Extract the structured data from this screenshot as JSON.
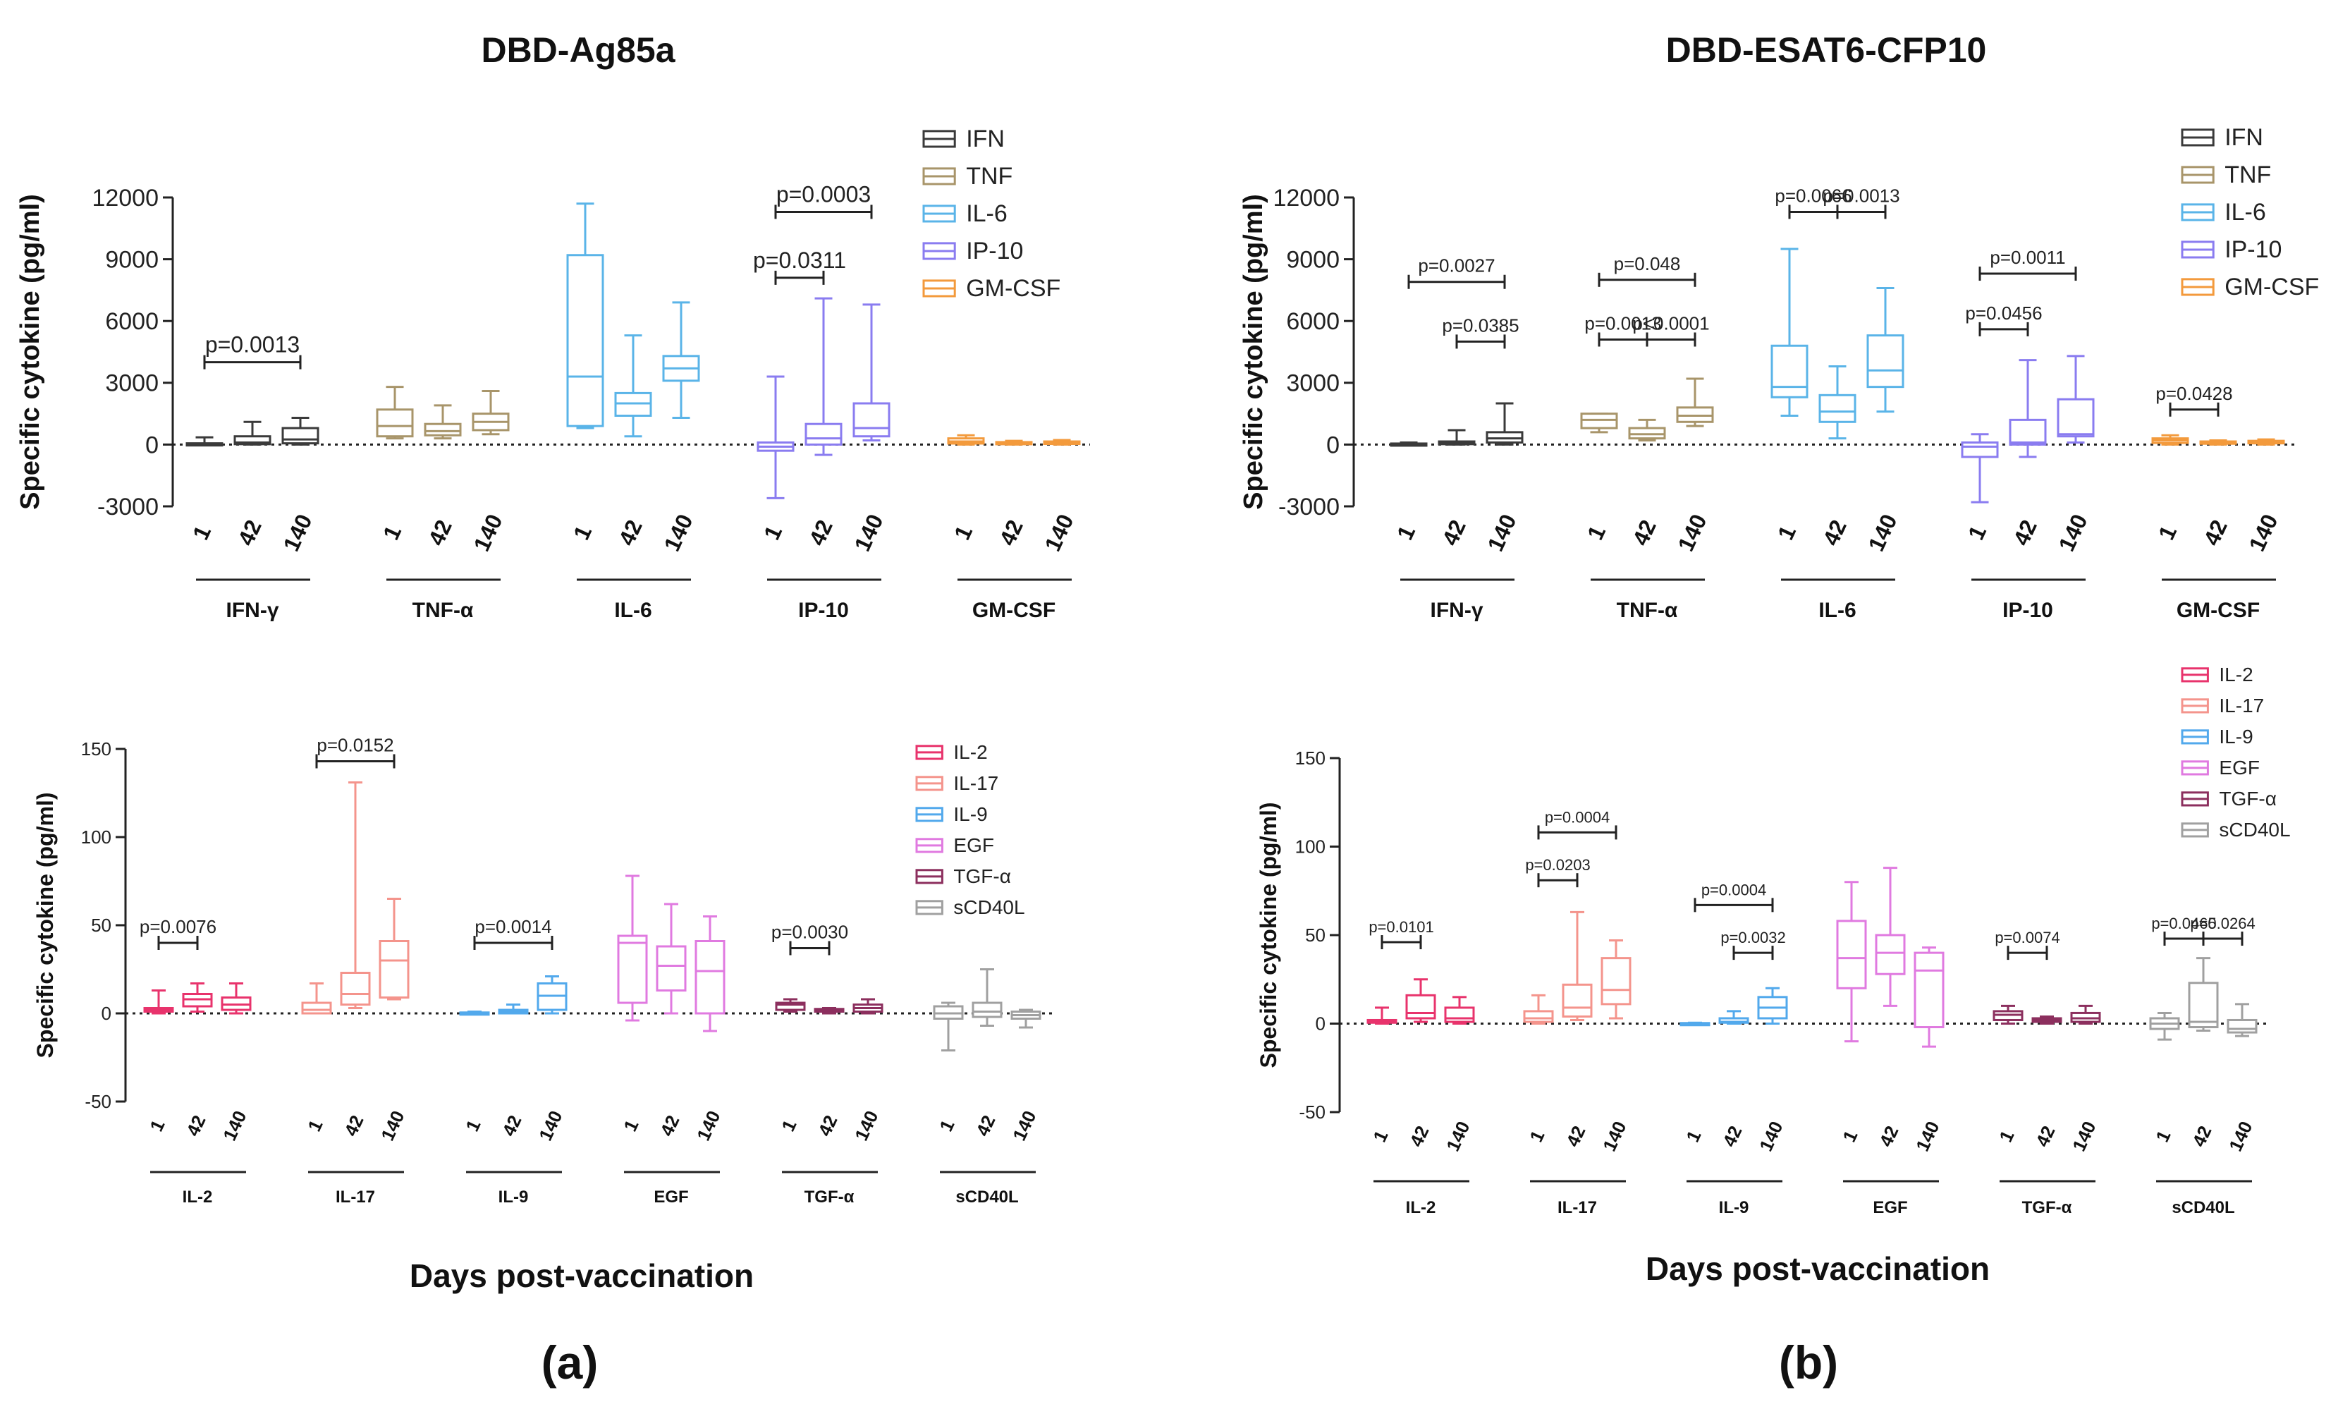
{
  "panel_a": {
    "title": "DBD-Ag85a",
    "label": "(a)"
  },
  "panel_b": {
    "title": "DBD-ESAT6-CFP10",
    "label": "(b)"
  },
  "xlabel": "Days post-vaccination",
  "colors": {
    "IFN": "#3a3a3a",
    "TNF": "#a8956a",
    "IL-6": "#5ab4e8",
    "IP-10": "#8a7cf0",
    "GM-CSF": "#f39a3c",
    "IL-2": "#e8336c",
    "IL-17": "#f4948c",
    "IL-9": "#52a9ec",
    "EGF": "#e07ae0",
    "TGF-a": "#8c2f5e",
    "sCD40L": "#a0a0a0"
  },
  "chart_data": [
    {
      "id": "a_top",
      "type": "boxplot",
      "title": "DBD-Ag85a",
      "ylabel": "Specific cytokine (pg/ml)",
      "ylim": [
        -3000,
        12000
      ],
      "yticks": [
        -3000,
        0,
        3000,
        6000,
        9000,
        12000
      ],
      "day_labels": [
        "1",
        "42",
        "140"
      ],
      "legend": [
        "IFN",
        "TNF",
        "IL-6",
        "IP-10",
        "GM-CSF"
      ],
      "groups": [
        {
          "name": "IFN-γ",
          "color_key": "IFN",
          "boxes": [
            {
              "min": 0,
              "q1": 0,
              "median": 30,
              "q3": 60,
              "max": 350
            },
            {
              "min": 0,
              "q1": 20,
              "median": 100,
              "q3": 400,
              "max": 1100
            },
            {
              "min": 0,
              "q1": 60,
              "median": 250,
              "q3": 800,
              "max": 1300
            }
          ]
        },
        {
          "name": "TNF-α",
          "color_key": "TNF",
          "boxes": [
            {
              "min": 300,
              "q1": 400,
              "median": 900,
              "q3": 1700,
              "max": 2800
            },
            {
              "min": 300,
              "q1": 450,
              "median": 650,
              "q3": 1000,
              "max": 1900
            },
            {
              "min": 500,
              "q1": 700,
              "median": 1100,
              "q3": 1500,
              "max": 2600
            }
          ]
        },
        {
          "name": "IL-6",
          "color_key": "IL-6",
          "boxes": [
            {
              "min": 800,
              "q1": 900,
              "median": 3300,
              "q3": 9200,
              "max": 11700
            },
            {
              "min": 400,
              "q1": 1400,
              "median": 2000,
              "q3": 2500,
              "max": 5300
            },
            {
              "min": 1300,
              "q1": 3100,
              "median": 3700,
              "q3": 4300,
              "max": 6900
            }
          ]
        },
        {
          "name": "IP-10",
          "color_key": "IP-10",
          "boxes": [
            {
              "min": -2600,
              "q1": -300,
              "median": -100,
              "q3": 100,
              "max": 3300
            },
            {
              "min": -500,
              "q1": 0,
              "median": 300,
              "q3": 1000,
              "max": 7100
            },
            {
              "min": 200,
              "q1": 400,
              "median": 800,
              "q3": 2000,
              "max": 6800
            }
          ]
        },
        {
          "name": "GM-CSF",
          "color_key": "GM-CSF",
          "boxes": [
            {
              "min": 0,
              "q1": 50,
              "median": 150,
              "q3": 300,
              "max": 450
            },
            {
              "min": 0,
              "q1": 20,
              "median": 60,
              "q3": 120,
              "max": 180
            },
            {
              "min": 0,
              "q1": 30,
              "median": 80,
              "q3": 150,
              "max": 220
            }
          ]
        }
      ],
      "annotations": [
        {
          "text": "p=0.0013",
          "group": 0,
          "from": 0,
          "to": 2,
          "level": 4000
        },
        {
          "text": "p=0.0311",
          "group": 3,
          "from": 0,
          "to": 1,
          "level": 8100
        },
        {
          "text": "p=0.0003",
          "group": 3,
          "from": 0,
          "to": 2,
          "level": 11300
        }
      ]
    },
    {
      "id": "b_top",
      "type": "boxplot",
      "title": "DBD-ESAT6-CFP10",
      "ylabel": "Specific cytokine (pg/ml)",
      "ylim": [
        -3000,
        12000
      ],
      "yticks": [
        -3000,
        0,
        3000,
        6000,
        9000,
        12000
      ],
      "day_labels": [
        "1",
        "42",
        "140"
      ],
      "legend": [
        "IFN",
        "TNF",
        "IL-6",
        "IP-10",
        "GM-CSF"
      ],
      "groups": [
        {
          "name": "IFN-γ",
          "color_key": "IFN",
          "boxes": [
            {
              "min": 0,
              "q1": 0,
              "median": 20,
              "q3": 50,
              "max": 100
            },
            {
              "min": 0,
              "q1": 20,
              "median": 80,
              "q3": 150,
              "max": 700
            },
            {
              "min": 0,
              "q1": 100,
              "median": 300,
              "q3": 600,
              "max": 2000
            }
          ]
        },
        {
          "name": "TNF-α",
          "color_key": "TNF",
          "boxes": [
            {
              "min": 600,
              "q1": 800,
              "median": 1200,
              "q3": 1500,
              "max": 1500
            },
            {
              "min": 200,
              "q1": 300,
              "median": 500,
              "q3": 800,
              "max": 1200
            },
            {
              "min": 900,
              "q1": 1100,
              "median": 1400,
              "q3": 1800,
              "max": 3200
            }
          ]
        },
        {
          "name": "IL-6",
          "color_key": "IL-6",
          "boxes": [
            {
              "min": 1400,
              "q1": 2300,
              "median": 2800,
              "q3": 4800,
              "max": 9500
            },
            {
              "min": 300,
              "q1": 1100,
              "median": 1600,
              "q3": 2400,
              "max": 3800
            },
            {
              "min": 1600,
              "q1": 2800,
              "median": 3600,
              "q3": 5300,
              "max": 7600
            }
          ]
        },
        {
          "name": "IP-10",
          "color_key": "IP-10",
          "boxes": [
            {
              "min": -2800,
              "q1": -600,
              "median": -100,
              "q3": 100,
              "max": 500
            },
            {
              "min": -600,
              "q1": 0,
              "median": 100,
              "q3": 1200,
              "max": 4100
            },
            {
              "min": 100,
              "q1": 400,
              "median": 500,
              "q3": 2200,
              "max": 4300
            }
          ]
        },
        {
          "name": "GM-CSF",
          "color_key": "GM-CSF",
          "boxes": [
            {
              "min": 0,
              "q1": 80,
              "median": 200,
              "q3": 300,
              "max": 450
            },
            {
              "min": 0,
              "q1": 40,
              "median": 90,
              "q3": 150,
              "max": 200
            },
            {
              "min": 0,
              "q1": 60,
              "median": 120,
              "q3": 180,
              "max": 250
            }
          ]
        }
      ],
      "annotations": [
        {
          "text": "p=0.0027",
          "group": 0,
          "from": 0,
          "to": 2,
          "level": 7900
        },
        {
          "text": "p=0.0385",
          "group": 0,
          "from": 1,
          "to": 2,
          "level": 5000
        },
        {
          "text": "p=0.048",
          "group": 1,
          "from": 0,
          "to": 2,
          "level": 8000
        },
        {
          "text": "p=0.0013",
          "group": 1,
          "from": 0,
          "to": 1,
          "level": 5100
        },
        {
          "text": "p<0.0001",
          "group": 1,
          "from": 1,
          "to": 2,
          "level": 5100
        },
        {
          "text": "p=0.0066",
          "group": 2,
          "from": 0,
          "to": 1,
          "level": 11300
        },
        {
          "text": "p=0.0013",
          "group": 2,
          "from": 1,
          "to": 2,
          "level": 11300
        },
        {
          "text": "p=0.0011",
          "group": 3,
          "from": 0,
          "to": 2,
          "level": 8300
        },
        {
          "text": "p=0.0456",
          "group": 3,
          "from": 0,
          "to": 1,
          "level": 5600
        },
        {
          "text": "p=0.0428",
          "group": 4,
          "from": 0,
          "to": 1,
          "level": 1700
        }
      ]
    },
    {
      "id": "a_bottom",
      "type": "boxplot",
      "ylabel": "Specific cytokine (pg/ml)",
      "xlabel": "Days post-vaccination",
      "ylim": [
        -50,
        150
      ],
      "yticks": [
        -50,
        0,
        50,
        100,
        150
      ],
      "day_labels": [
        "1",
        "42",
        "140"
      ],
      "legend": [
        "IL-2",
        "IL-17",
        "IL-9",
        "EGF",
        "TGF-α",
        "sCD40L"
      ],
      "groups": [
        {
          "name": "IL-2",
          "color_key": "IL-2",
          "boxes": [
            {
              "min": 0,
              "q1": 1,
              "median": 2,
              "q3": 3,
              "max": 13
            },
            {
              "min": 1,
              "q1": 4,
              "median": 8,
              "q3": 11,
              "max": 17
            },
            {
              "min": 0,
              "q1": 2,
              "median": 5,
              "q3": 9,
              "max": 17
            }
          ]
        },
        {
          "name": "IL-17",
          "color_key": "IL-17",
          "boxes": [
            {
              "min": 0,
              "q1": 0,
              "median": 2,
              "q3": 6,
              "max": 17
            },
            {
              "min": 3,
              "q1": 5,
              "median": 11,
              "q3": 23,
              "max": 131
            },
            {
              "min": 8,
              "q1": 9,
              "median": 30,
              "q3": 41,
              "max": 65
            }
          ]
        },
        {
          "name": "IL-9",
          "color_key": "IL-9",
          "boxes": [
            {
              "min": 0,
              "q1": 0,
              "median": 0,
              "q3": 0.5,
              "max": 1
            },
            {
              "min": 0,
              "q1": 0,
              "median": 1,
              "q3": 2,
              "max": 5
            },
            {
              "min": 0,
              "q1": 2,
              "median": 10,
              "q3": 17,
              "max": 21
            }
          ]
        },
        {
          "name": "EGF",
          "color_key": "EGF",
          "boxes": [
            {
              "min": -4,
              "q1": 6,
              "median": 40,
              "q3": 44,
              "max": 78
            },
            {
              "min": 0,
              "q1": 13,
              "median": 27,
              "q3": 38,
              "max": 62
            },
            {
              "min": -10,
              "q1": 0,
              "median": 24,
              "q3": 41,
              "max": 55
            }
          ]
        },
        {
          "name": "TGF-α",
          "color_key": "TGF-a",
          "boxes": [
            {
              "min": 1,
              "q1": 2,
              "median": 5,
              "q3": 6,
              "max": 8
            },
            {
              "min": 0,
              "q1": 1,
              "median": 1.5,
              "q3": 2.5,
              "max": 3
            },
            {
              "min": 0,
              "q1": 1,
              "median": 3,
              "q3": 5,
              "max": 8
            }
          ]
        },
        {
          "name": "sCD40L",
          "color_key": "sCD40L",
          "boxes": [
            {
              "min": -21,
              "q1": -3,
              "median": 0,
              "q3": 4,
              "max": 6
            },
            {
              "min": -7,
              "q1": -2,
              "median": 1,
              "q3": 6,
              "max": 25
            },
            {
              "min": -8,
              "q1": -3,
              "median": -1,
              "q3": 1,
              "max": 2
            }
          ]
        }
      ],
      "annotations": [
        {
          "text": "p=0.0076",
          "group": 0,
          "from": 0,
          "to": 1,
          "level": 40
        },
        {
          "text": "p=0.0152",
          "group": 1,
          "from": 0,
          "to": 2,
          "level": 143
        },
        {
          "text": "p=0.0014",
          "group": 2,
          "from": 0,
          "to": 2,
          "level": 40
        },
        {
          "text": "p=0.0030",
          "group": 4,
          "from": 0,
          "to": 1,
          "level": 37
        }
      ]
    },
    {
      "id": "b_bottom",
      "type": "boxplot",
      "ylabel": "Specific cytokine (pg/ml)",
      "xlabel": "Days post-vaccination",
      "ylim": [
        -50,
        150
      ],
      "yticks": [
        -50,
        0,
        50,
        100,
        150
      ],
      "day_labels": [
        "1",
        "42",
        "140"
      ],
      "legend": [
        "IL-2",
        "IL-17",
        "IL-9",
        "EGF",
        "TGF-α",
        "sCD40L"
      ],
      "groups": [
        {
          "name": "IL-2",
          "color_key": "IL-2",
          "boxes": [
            {
              "min": 0,
              "q1": 0.5,
              "median": 1,
              "q3": 2,
              "max": 9
            },
            {
              "min": 1,
              "q1": 3,
              "median": 6,
              "q3": 16,
              "max": 25
            },
            {
              "min": 0,
              "q1": 1,
              "median": 3,
              "q3": 9,
              "max": 15
            }
          ]
        },
        {
          "name": "IL-17",
          "color_key": "IL-17",
          "boxes": [
            {
              "min": 0,
              "q1": 1,
              "median": 3,
              "q3": 7,
              "max": 16
            },
            {
              "min": 2,
              "q1": 4,
              "median": 9,
              "q3": 22,
              "max": 63
            },
            {
              "min": 3,
              "q1": 11,
              "median": 19,
              "q3": 37,
              "max": 47
            }
          ]
        },
        {
          "name": "IL-9",
          "color_key": "IL-9",
          "boxes": [
            {
              "min": 0,
              "q1": 0,
              "median": 0,
              "q3": 0.3,
              "max": 0.5
            },
            {
              "min": 0,
              "q1": 0.5,
              "median": 1,
              "q3": 3,
              "max": 7
            },
            {
              "min": 0,
              "q1": 3,
              "median": 9,
              "q3": 15,
              "max": 20
            }
          ]
        },
        {
          "name": "EGF",
          "color_key": "EGF",
          "boxes": [
            {
              "min": -10,
              "q1": 20,
              "median": 37,
              "q3": 58,
              "max": 80
            },
            {
              "min": 10,
              "q1": 28,
              "median": 40,
              "q3": 50,
              "max": 88
            },
            {
              "min": -13,
              "q1": -2,
              "median": 30,
              "q3": 40,
              "max": 43
            }
          ]
        },
        {
          "name": "TGF-α",
          "color_key": "TGF-a",
          "boxes": [
            {
              "min": 0,
              "q1": 2,
              "median": 5,
              "q3": 7,
              "max": 10
            },
            {
              "min": 0,
              "q1": 1,
              "median": 2,
              "q3": 3,
              "max": 4
            },
            {
              "min": 0,
              "q1": 1,
              "median": 3,
              "q3": 6,
              "max": 10
            }
          ]
        },
        {
          "name": "sCD40L",
          "color_key": "sCD40L",
          "boxes": [
            {
              "min": -9,
              "q1": -3,
              "median": 0,
              "q3": 3,
              "max": 6
            },
            {
              "min": -4,
              "q1": -2,
              "median": 1,
              "q3": 23,
              "max": 37
            },
            {
              "min": -7,
              "q1": -5,
              "median": -3,
              "q3": 2,
              "max": 11
            }
          ]
        }
      ],
      "annotations": [
        {
          "text": "p=0.0101",
          "group": 0,
          "from": 0,
          "to": 1,
          "level": 46
        },
        {
          "text": "p=0.0004",
          "group": 1,
          "from": 0,
          "to": 2,
          "level": 108
        },
        {
          "text": "p=0.0203",
          "group": 1,
          "from": 0,
          "to": 1,
          "level": 81
        },
        {
          "text": "p=0.0004",
          "group": 2,
          "from": 0,
          "to": 2,
          "level": 67
        },
        {
          "text": "p=0.0032",
          "group": 2,
          "from": 1,
          "to": 2,
          "level": 40
        },
        {
          "text": "p=0.0074",
          "group": 4,
          "from": 0,
          "to": 1,
          "level": 40
        },
        {
          "text": "p=0.0465",
          "group": 5,
          "from": 0,
          "to": 1,
          "level": 48
        },
        {
          "text": "p=0.0264",
          "group": 5,
          "from": 1,
          "to": 2,
          "level": 48
        }
      ]
    }
  ]
}
